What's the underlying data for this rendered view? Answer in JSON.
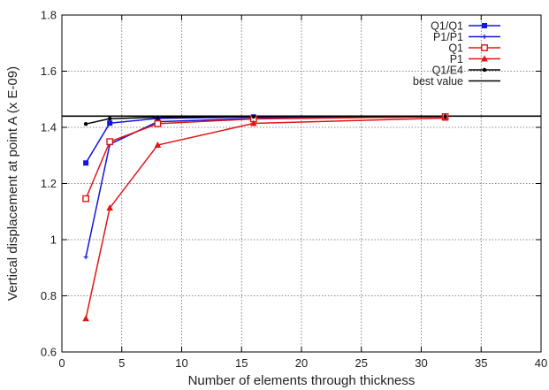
{
  "chart_data": {
    "type": "line",
    "xlabel": "Number of elements through thickness",
    "ylabel": "Vertical displacement at point A (x E-09)",
    "xlim": [
      0,
      40
    ],
    "ylim": [
      0.6,
      1.8
    ],
    "xticks": [
      0,
      5,
      10,
      15,
      20,
      25,
      30,
      35,
      40
    ],
    "yticks": [
      0.6,
      0.8,
      1,
      1.2,
      1.4,
      1.6,
      1.8
    ],
    "ytick_labels": [
      "0.6",
      "0.8",
      "1",
      "1.2",
      "1.4",
      "1.6",
      "1.8"
    ],
    "grid": true,
    "legend_position": "top-right",
    "series": [
      {
        "name": "Q1/Q1",
        "color": "#1515e0",
        "marker": "filled-square",
        "x": [
          2,
          4,
          8,
          16,
          32
        ],
        "y": [
          1.273,
          1.415,
          1.432,
          1.437,
          1.439
        ]
      },
      {
        "name": "P1/P1",
        "color": "#1515e0",
        "marker": "small-star",
        "x": [
          2,
          4,
          8,
          16,
          32
        ],
        "y": [
          0.938,
          1.34,
          1.42,
          1.432,
          1.438
        ]
      },
      {
        "name": "Q1",
        "color": "#e01515",
        "marker": "open-square",
        "x": [
          2,
          4,
          8,
          16,
          32
        ],
        "y": [
          1.146,
          1.349,
          1.413,
          1.43,
          1.438
        ]
      },
      {
        "name": "P1",
        "color": "#e01515",
        "marker": "filled-triangle",
        "x": [
          2,
          4,
          8,
          16,
          32
        ],
        "y": [
          0.719,
          1.113,
          1.337,
          1.414,
          1.433
        ]
      },
      {
        "name": "Q1/E4",
        "color": "#000000",
        "marker": "small-dot",
        "x": [
          2,
          4,
          8,
          16,
          32
        ],
        "y": [
          1.412,
          1.431,
          1.436,
          1.438,
          1.439
        ]
      },
      {
        "name": "best value",
        "color": "#000000",
        "marker": "none",
        "constant": 1.44
      }
    ]
  }
}
